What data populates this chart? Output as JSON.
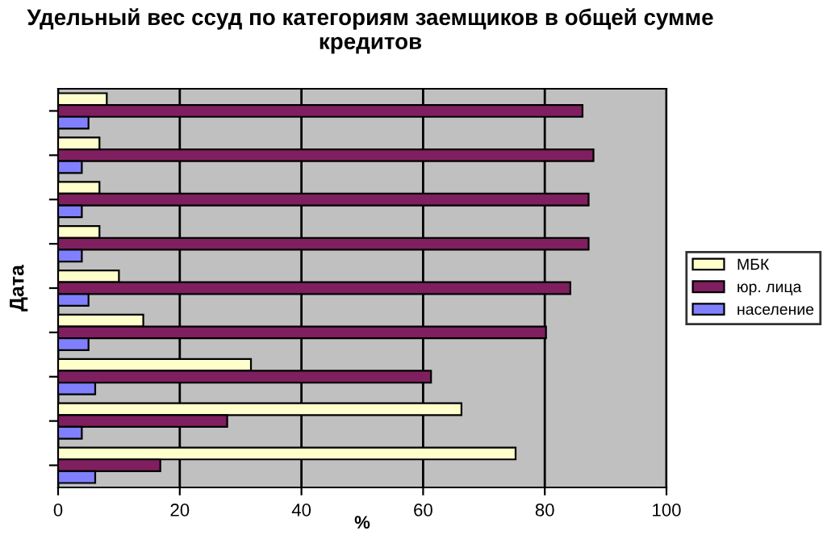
{
  "chart_data": {
    "type": "bar",
    "orientation": "horizontal",
    "title": "Удельный вес ссуд по категориям заемщиков в общей сумме кредитов",
    "xlabel": "%",
    "ylabel": "Дата",
    "categories": [
      null,
      null,
      null,
      null,
      null,
      null,
      null,
      null,
      null
    ],
    "series": [
      {
        "name": "МБК",
        "color": "#ffffcc",
        "values": [
          8,
          6.8,
          6.8,
          6.8,
          10,
          14,
          31.7,
          66.3,
          75.2
        ]
      },
      {
        "name": "юр. лица",
        "color": "#7f1f5f",
        "values": [
          86.2,
          88,
          87.2,
          87.2,
          84.2,
          80.2,
          61.3,
          27.8,
          16.8
        ]
      },
      {
        "name": "население",
        "color": "#8080ff",
        "values": [
          5,
          3.9,
          3.9,
          3.9,
          5,
          5,
          6.1,
          3.9,
          6.1
        ]
      }
    ],
    "xlim": [
      0,
      100
    ],
    "xticks": [
      0,
      20,
      40,
      60,
      80,
      100
    ],
    "grid": "x",
    "legend": "right"
  }
}
